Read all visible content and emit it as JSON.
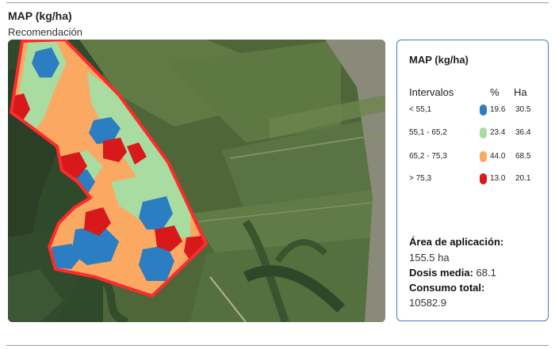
{
  "header": {
    "title": "MAP (kg/ha)",
    "subtitle": "Recomendación"
  },
  "legend": {
    "title": "MAP (kg/ha)",
    "columns": {
      "intervals": "Intervalos",
      "percent": "%",
      "hectares": "Ha"
    },
    "rows": [
      {
        "range": "< 55,1",
        "percent": "19.6",
        "ha": "30.5",
        "color": "#2a7ec1"
      },
      {
        "range": "55,1 - 65,2",
        "percent": "23.4",
        "ha": "36.4",
        "color": "#a8dca0"
      },
      {
        "range": "65,2 - 75,3",
        "percent": "44.0",
        "ha": "68.5",
        "color": "#fba863"
      },
      {
        "range": "> 75,3",
        "percent": "13.0",
        "ha": "20.1",
        "color": "#d7191c"
      }
    ]
  },
  "stats": {
    "area_label": "Área de aplicación:",
    "area_value": "155.5 ha",
    "dose_label": "Dosis media:",
    "dose_value": "68.1",
    "consumption_label": "Consumo total:",
    "consumption_value": "10582.9"
  },
  "map": {
    "boundary_color": "#ff2a2a"
  }
}
